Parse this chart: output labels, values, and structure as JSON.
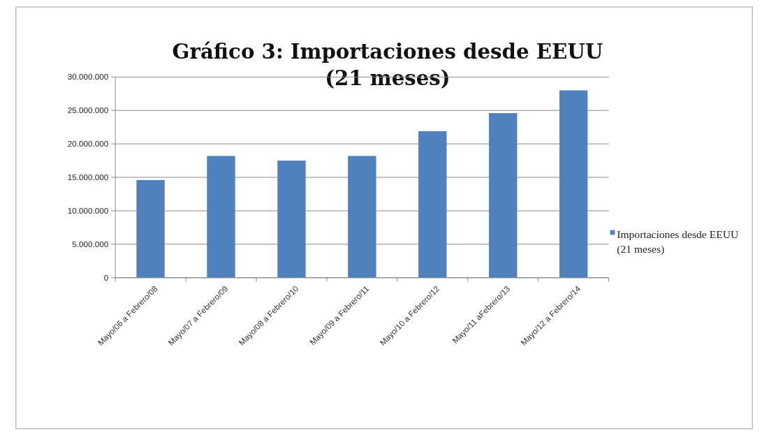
{
  "chart_data": {
    "type": "bar",
    "title": "Gráfico 3: Importaciones desde EEUU (21 meses)",
    "categories": [
      "Mayo/06 a Febrero/08",
      "Mayo/07 a Febrero/09",
      "Mayo/08 a Febrero/10",
      "Mayo/09 a Febrero/11",
      "Mayo/10 a Febrero/12",
      "Mayo/11 aFebrero/13",
      "Mayo/12 a Febrero/14"
    ],
    "series": [
      {
        "name": "Importaciones desde EEUU (21 meses)",
        "color": "#4f81bd",
        "values": [
          14600000,
          18200000,
          17500000,
          18200000,
          21900000,
          24600000,
          28000000
        ]
      }
    ],
    "ylim": [
      0,
      30000000
    ],
    "yticks": [
      {
        "value": 0,
        "label": "0"
      },
      {
        "value": 5000000,
        "label": "5.000.000"
      },
      {
        "value": 10000000,
        "label": "10.000.000"
      },
      {
        "value": 15000000,
        "label": "15.000.000"
      },
      {
        "value": 20000000,
        "label": "20.000.000"
      },
      {
        "value": 25000000,
        "label": "25.000.000"
      },
      {
        "value": 30000000,
        "label": "30.000.000"
      }
    ],
    "grid": "y",
    "legend": "right"
  }
}
